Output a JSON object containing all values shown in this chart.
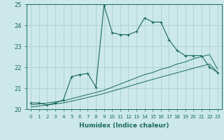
{
  "xlabel": "Humidex (Indice chaleur)",
  "ylabel": "",
  "xlim": [
    -0.5,
    23.5
  ],
  "ylim": [
    20,
    25
  ],
  "yticks": [
    20,
    21,
    22,
    23,
    24,
    25
  ],
  "xticks": [
    0,
    1,
    2,
    3,
    4,
    5,
    6,
    7,
    8,
    9,
    10,
    11,
    12,
    13,
    14,
    15,
    16,
    17,
    18,
    19,
    20,
    21,
    22,
    23
  ],
  "bg_color": "#cce8e8",
  "line_color": "#1a6b5a",
  "line1_x": [
    0,
    1,
    2,
    3,
    4,
    5,
    6,
    7,
    8,
    9,
    10,
    11,
    12,
    13,
    14,
    15,
    16,
    17,
    18,
    19,
    20,
    21,
    22,
    23
  ],
  "line1_y": [
    20.3,
    20.3,
    20.2,
    20.3,
    20.45,
    21.55,
    21.65,
    21.7,
    21.05,
    24.95,
    23.65,
    23.55,
    23.55,
    23.7,
    24.35,
    24.15,
    24.15,
    23.3,
    22.8,
    22.55,
    22.55,
    22.55,
    22.0,
    21.75
  ],
  "line2_x": [
    0,
    1,
    2,
    3,
    4,
    5,
    6,
    7,
    8,
    9,
    10,
    11,
    12,
    13,
    14,
    15,
    16,
    17,
    18,
    19,
    20,
    21,
    22,
    23
  ],
  "line2_y": [
    20.2,
    20.25,
    20.3,
    20.35,
    20.4,
    20.5,
    20.6,
    20.7,
    20.8,
    20.9,
    21.05,
    21.2,
    21.35,
    21.5,
    21.65,
    21.75,
    21.9,
    22.0,
    22.15,
    22.25,
    22.4,
    22.5,
    22.6,
    21.9
  ],
  "line3_x": [
    0,
    1,
    2,
    3,
    4,
    5,
    6,
    7,
    8,
    9,
    10,
    11,
    12,
    13,
    14,
    15,
    16,
    17,
    18,
    19,
    20,
    21,
    22,
    23
  ],
  "line3_y": [
    20.1,
    20.15,
    20.2,
    20.25,
    20.3,
    20.38,
    20.47,
    20.56,
    20.65,
    20.75,
    20.86,
    20.97,
    21.08,
    21.2,
    21.31,
    21.42,
    21.53,
    21.63,
    21.74,
    21.84,
    21.95,
    22.05,
    22.15,
    21.75
  ]
}
